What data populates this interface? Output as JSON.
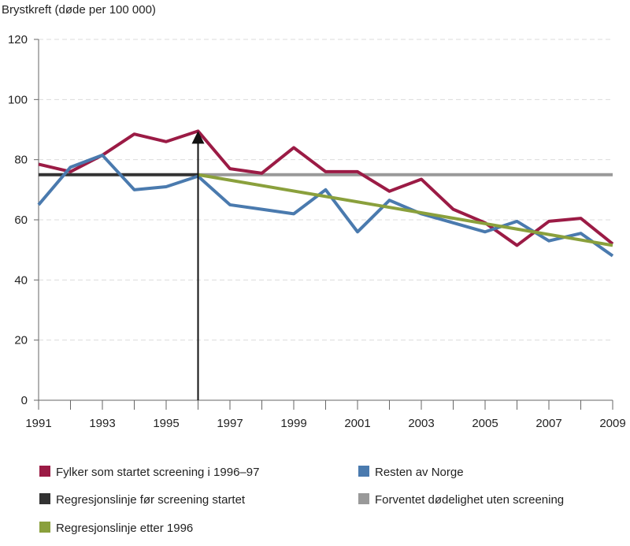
{
  "chart_data": {
    "type": "line",
    "ylabel": "Brystkreft (døde per 100 000)",
    "x": [
      1991,
      1992,
      1993,
      1994,
      1995,
      1996,
      1997,
      1998,
      1999,
      2000,
      2001,
      2002,
      2003,
      2004,
      2005,
      2006,
      2007,
      2008,
      2009
    ],
    "xlim": [
      1991,
      2009
    ],
    "ylim": [
      0,
      120
    ],
    "x_tick_labels": [
      "1991",
      "1993",
      "1995",
      "1997",
      "1999",
      "2001",
      "2003",
      "2005",
      "2007",
      "2009"
    ],
    "y_tick_labels": [
      "0",
      "20",
      "40",
      "60",
      "80",
      "100",
      "120"
    ],
    "grid": "horizontal dashed",
    "legend_position": "bottom",
    "series": [
      {
        "name": "Fylker som startet screening i 1996–97",
        "color": "#9b1b45",
        "values": [
          78.5,
          76,
          81.5,
          88.5,
          86,
          89.5,
          77,
          75.5,
          84,
          76,
          76,
          69.5,
          73.5,
          63.5,
          59,
          51.5,
          59.5,
          60.5,
          52
        ]
      },
      {
        "name": "Resten av Norge",
        "color": "#4a7aae",
        "values": [
          65,
          77.5,
          81.5,
          70,
          71,
          74.5,
          65,
          63.5,
          62,
          70,
          56,
          66.5,
          62,
          59,
          56,
          59.5,
          53,
          55.5,
          48
        ]
      },
      {
        "name": "Regresjonslinje før screening startet",
        "color": "#333333",
        "points": [
          [
            1991,
            75
          ],
          [
            1996,
            75
          ]
        ]
      },
      {
        "name": "Forventet dødelighet uten screening",
        "color": "#999999",
        "points": [
          [
            1996,
            75
          ],
          [
            2009,
            75
          ]
        ]
      },
      {
        "name": "Regresjonslinje etter 1996",
        "color": "#8aa03c",
        "points": [
          [
            1996,
            75
          ],
          [
            2009,
            51.5
          ]
        ]
      }
    ],
    "annotations": [
      {
        "type": "vertical-arrow",
        "x": 1996,
        "from_y": 0,
        "to_y": 89
      }
    ]
  }
}
